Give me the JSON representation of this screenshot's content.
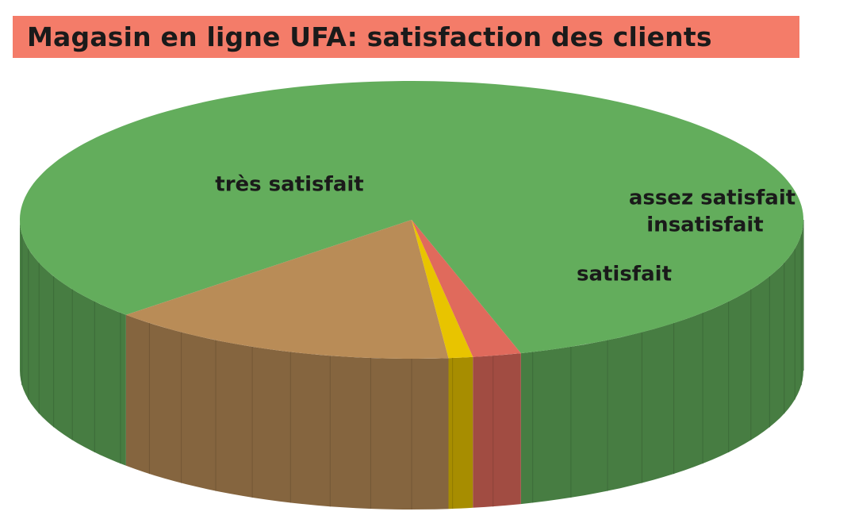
{
  "chart_data": {
    "type": "pie",
    "title": "Magasin en ligne UFA: satisfaction des clients",
    "slices": [
      {
        "label": "très satisfait",
        "value": 82.5,
        "color": "#63ad5c"
      },
      {
        "label": "satisfait",
        "value": 14.5,
        "color": "#b98c57"
      },
      {
        "label": "insatisfait",
        "value": 1.0,
        "color": "#e8c400"
      },
      {
        "label": "assez satisfait",
        "value": 2.0,
        "color": "#e06a5c"
      }
    ]
  }
}
